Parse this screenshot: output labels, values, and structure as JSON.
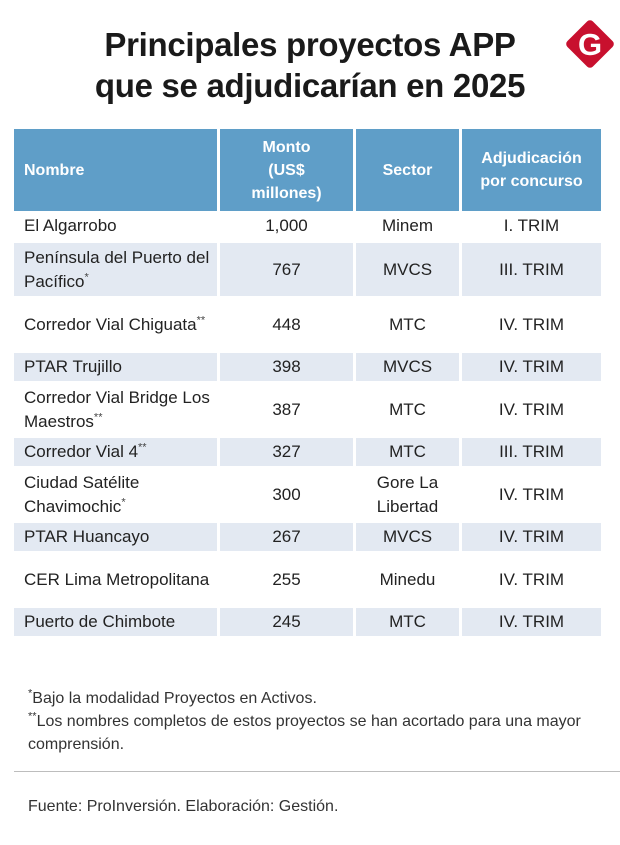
{
  "title": {
    "line1": "Principales proyectos APP",
    "line2": "que se adjudicarían en 2025"
  },
  "logo": {
    "letter": "G",
    "color": "#c8102e",
    "icon": "gestion-logo"
  },
  "colors": {
    "header_bg": "#5f9ec8",
    "row_alt_bg": "#e3e9f2"
  },
  "chart_data": {
    "type": "table",
    "columns": [
      "Nombre",
      "Monto (US$ millones)",
      "Sector",
      "Adjudicación por concurso"
    ],
    "rows": [
      {
        "nombre": "El Algarrobo",
        "mark": "",
        "monto": "1,000",
        "sector": "Minem",
        "adjudicacion": "I. TRIM"
      },
      {
        "nombre": "Península del Puerto del Pacífico",
        "mark": "*",
        "monto": "767",
        "sector": "MVCS",
        "adjudicacion": "III. TRIM"
      },
      {
        "nombre": "Corredor Vial Chiguata",
        "mark": "**",
        "monto": "448",
        "sector": "MTC",
        "adjudicacion": "IV. TRIM"
      },
      {
        "nombre": "PTAR Trujillo",
        "mark": "",
        "monto": "398",
        "sector": "MVCS",
        "adjudicacion": "IV. TRIM"
      },
      {
        "nombre": "Corredor Vial Bridge Los Maestros",
        "mark": "**",
        "monto": "387",
        "sector": "MTC",
        "adjudicacion": "IV. TRIM"
      },
      {
        "nombre": "Corredor Vial 4",
        "mark": "**",
        "monto": "327",
        "sector": "MTC",
        "adjudicacion": "III. TRIM"
      },
      {
        "nombre": "Ciudad Satélite Chavimochic",
        "mark": "*",
        "monto": "300",
        "sector": "Gore La Libertad",
        "adjudicacion": "IV. TRIM"
      },
      {
        "nombre": "PTAR Huancayo",
        "mark": "",
        "monto": "267",
        "sector": "MVCS",
        "adjudicacion": "IV. TRIM"
      },
      {
        "nombre": "CER Lima Metropolitana",
        "mark": "",
        "monto": "255",
        "sector": "Minedu",
        "adjudicacion": "IV. TRIM"
      },
      {
        "nombre": "Puerto de Chimbote",
        "mark": "",
        "monto": "245",
        "sector": "MTC",
        "adjudicacion": "IV. TRIM"
      }
    ]
  },
  "header_lines": {
    "nombre": [
      "Nombre"
    ],
    "monto": [
      "Monto",
      "(US$",
      "millones)"
    ],
    "sector": [
      "Sector"
    ],
    "adjudicacion": [
      "Adjudicación",
      "por concurso"
    ]
  },
  "notes": {
    "note1_mark": "*",
    "note1": "Bajo la modalidad Proyectos en Activos.",
    "note2_mark": "**",
    "note2": "Los nombres completos de estos proyectos se han acortado para una mayor comprensión."
  },
  "source": "Fuente: ProInversión. Elaboración: Gestión."
}
